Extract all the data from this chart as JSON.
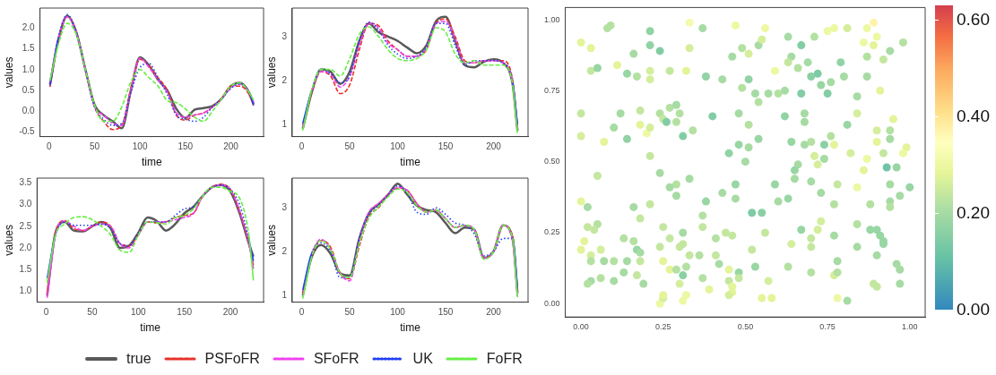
{
  "chart_data": [
    {
      "type": "line",
      "xlabel": "time",
      "ylabel": "values",
      "legend": "bottom",
      "x": [
        1,
        10,
        20,
        30,
        40,
        50,
        60,
        70,
        80,
        90,
        100,
        110,
        120,
        130,
        140,
        150,
        160,
        170,
        180,
        190,
        200,
        210,
        220,
        225
      ],
      "xlim": [
        -10,
        236
      ],
      "ylim": [
        -0.62,
        2.49
      ],
      "xticks": [
        0,
        50,
        100,
        150,
        200
      ],
      "yticks": [
        -0.5,
        {
          "value": 0,
          "label": "0.0"
        },
        0.5,
        {
          "value": 1,
          "label": "1.0"
        },
        1.5,
        {
          "value": 2,
          "label": "2.0"
        }
      ],
      "series": [
        {
          "name": "true",
          "color": "#595959",
          "line_style": "solid",
          "values": [
            0.65,
            1.7,
            2.3,
            1.9,
            1.0,
            0.15,
            -0.1,
            -0.25,
            -0.42,
            0.5,
            1.3,
            1.1,
            0.75,
            0.5,
            0.05,
            -0.17,
            0.03,
            0.07,
            0.12,
            0.3,
            0.6,
            0.68,
            0.45,
            0.17
          ]
        },
        {
          "name": "PSFoFR",
          "color": "#e8312a",
          "line_style": "dashed",
          "values": [
            0.58,
            1.7,
            2.28,
            1.9,
            1.0,
            0.1,
            -0.25,
            -0.45,
            -0.35,
            0.55,
            1.25,
            1.1,
            0.8,
            0.5,
            -0.1,
            -0.22,
            -0.1,
            -0.05,
            0.1,
            0.3,
            0.6,
            0.6,
            0.4,
            0.13
          ]
        },
        {
          "name": "SFoFR",
          "color": "#f040f0",
          "line_style": "dashed",
          "values": [
            0.69,
            1.75,
            2.28,
            1.9,
            1.0,
            0.1,
            -0.1,
            -0.3,
            -0.35,
            0.5,
            1.28,
            1.05,
            0.75,
            0.45,
            -0.05,
            -0.15,
            -0.1,
            -0.05,
            0.1,
            0.3,
            0.55,
            0.65,
            0.45,
            0.21
          ]
        },
        {
          "name": "UK",
          "color": "#1f3ff5",
          "line_style": "dotted",
          "values": [
            0.62,
            1.75,
            2.33,
            1.9,
            1.0,
            0.1,
            -0.2,
            -0.35,
            -0.3,
            0.45,
            1.05,
            1.15,
            0.8,
            0.4,
            -0.1,
            -0.2,
            -0.25,
            -0.15,
            0.1,
            0.3,
            0.55,
            0.65,
            0.45,
            0.14
          ]
        },
        {
          "name": "FoFR",
          "color": "#66ee44",
          "line_style": "dashed",
          "values": [
            0.73,
            1.6,
            2.12,
            1.85,
            1.0,
            0.15,
            -0.25,
            -0.25,
            0.1,
            0.7,
            1.0,
            0.8,
            0.6,
            0.25,
            0.2,
            0.05,
            -0.15,
            -0.25,
            0.0,
            0.3,
            0.6,
            0.68,
            0.45,
            0.26
          ]
        }
      ]
    },
    {
      "type": "line",
      "xlabel": "time",
      "ylabel": "values",
      "legend": "bottom",
      "x": [
        1,
        10,
        20,
        30,
        40,
        50,
        60,
        70,
        80,
        90,
        100,
        110,
        120,
        130,
        140,
        150,
        160,
        170,
        180,
        190,
        200,
        210,
        220,
        225
      ],
      "xlim": [
        -10,
        236
      ],
      "ylim": [
        0.72,
        3.65
      ],
      "xticks": [
        0,
        50,
        100,
        150,
        200
      ],
      "yticks": [
        1,
        2,
        3
      ],
      "series": [
        {
          "name": "true",
          "color": "#595959",
          "line_style": "solid",
          "values": [
            0.9,
            1.7,
            2.25,
            2.2,
            1.92,
            2.2,
            2.9,
            3.3,
            3.1,
            3.0,
            2.9,
            2.75,
            2.62,
            2.8,
            3.35,
            3.45,
            2.9,
            2.35,
            2.3,
            2.43,
            2.48,
            2.4,
            1.9,
            0.85
          ]
        },
        {
          "name": "PSFoFR",
          "color": "#e8312a",
          "line_style": "dashed",
          "values": [
            0.98,
            1.7,
            2.2,
            2.1,
            1.7,
            1.9,
            2.7,
            3.3,
            3.25,
            2.9,
            2.7,
            2.55,
            2.55,
            2.7,
            3.3,
            3.4,
            3.0,
            2.45,
            2.4,
            2.45,
            2.45,
            2.45,
            2.0,
            0.95
          ]
        },
        {
          "name": "SFoFR",
          "color": "#f040f0",
          "line_style": "dashed",
          "values": [
            0.93,
            1.75,
            2.2,
            2.15,
            1.85,
            2.1,
            2.8,
            3.3,
            3.2,
            2.85,
            2.7,
            2.55,
            2.55,
            2.75,
            3.3,
            3.35,
            2.95,
            2.4,
            2.4,
            2.45,
            2.45,
            2.4,
            1.95,
            0.9
          ]
        },
        {
          "name": "UK",
          "color": "#1f3ff5",
          "line_style": "dotted",
          "values": [
            1.02,
            1.75,
            2.25,
            2.15,
            1.95,
            2.1,
            2.9,
            3.33,
            3.15,
            2.8,
            2.6,
            2.5,
            2.55,
            2.75,
            3.3,
            3.3,
            2.8,
            2.35,
            2.45,
            2.45,
            2.45,
            2.4,
            1.95,
            1.0
          ]
        },
        {
          "name": "FoFR",
          "color": "#66ee44",
          "line_style": "dashed",
          "values": [
            0.86,
            1.75,
            2.25,
            2.25,
            2.1,
            2.5,
            3.05,
            3.22,
            3.0,
            2.7,
            2.5,
            2.45,
            2.5,
            2.7,
            3.2,
            3.1,
            2.6,
            2.4,
            2.45,
            2.35,
            2.35,
            2.35,
            1.9,
            0.8
          ]
        }
      ]
    },
    {
      "type": "line",
      "xlabel": "time",
      "ylabel": "values",
      "legend": "bottom",
      "x": [
        1,
        10,
        20,
        30,
        40,
        50,
        60,
        70,
        80,
        90,
        100,
        110,
        120,
        130,
        140,
        150,
        160,
        170,
        180,
        190,
        200,
        210,
        220,
        225
      ],
      "xlim": [
        -10,
        236
      ],
      "ylim": [
        0.75,
        3.61
      ],
      "xticks": [
        0,
        50,
        100,
        150,
        200
      ],
      "yticks": [
        {
          "value": 1,
          "label": "1.0"
        },
        1.5,
        {
          "value": 2,
          "label": "2.0"
        },
        2.5,
        {
          "value": 3,
          "label": "3.0"
        },
        3.5
      ],
      "series": [
        {
          "name": "true",
          "color": "#595959",
          "line_style": "solid",
          "values": [
            0.9,
            2.35,
            2.6,
            2.4,
            2.38,
            2.5,
            2.6,
            2.45,
            2.0,
            2.05,
            2.35,
            2.7,
            2.62,
            2.4,
            2.55,
            2.8,
            2.95,
            3.2,
            3.4,
            3.45,
            3.3,
            2.8,
            2.1,
            1.8
          ]
        },
        {
          "name": "PSFoFR",
          "color": "#e8312a",
          "line_style": "dashed",
          "values": [
            0.95,
            2.35,
            2.63,
            2.45,
            2.4,
            2.5,
            2.6,
            2.5,
            2.1,
            2.05,
            2.3,
            2.6,
            2.58,
            2.6,
            2.7,
            2.75,
            2.8,
            3.2,
            3.4,
            3.47,
            3.35,
            2.85,
            2.1,
            1.6
          ]
        },
        {
          "name": "SFoFR",
          "color": "#f040f0",
          "line_style": "dashed",
          "values": [
            0.85,
            2.3,
            2.62,
            2.5,
            2.4,
            2.5,
            2.55,
            2.5,
            2.1,
            2.0,
            2.3,
            2.6,
            2.6,
            2.6,
            2.65,
            2.7,
            2.8,
            3.2,
            3.4,
            3.45,
            3.35,
            2.85,
            2.1,
            1.52
          ]
        },
        {
          "name": "UK",
          "color": "#1f3ff5",
          "line_style": "dotted",
          "values": [
            1.3,
            2.3,
            2.6,
            2.52,
            2.52,
            2.52,
            2.55,
            2.45,
            2.1,
            2.05,
            2.35,
            2.6,
            2.6,
            2.6,
            2.75,
            2.9,
            2.95,
            3.2,
            3.4,
            3.45,
            3.35,
            3.0,
            2.2,
            1.7
          ]
        },
        {
          "name": "FoFR",
          "color": "#66ee44",
          "line_style": "dashed",
          "values": [
            1.2,
            2.3,
            2.55,
            2.7,
            2.72,
            2.65,
            2.5,
            2.3,
            1.95,
            1.9,
            2.3,
            2.6,
            2.58,
            2.55,
            2.7,
            2.75,
            2.9,
            3.2,
            3.4,
            3.4,
            3.3,
            3.15,
            2.3,
            1.25
          ]
        }
      ]
    },
    {
      "type": "line",
      "xlabel": "time",
      "ylabel": "values",
      "legend": "bottom",
      "x": [
        1,
        10,
        20,
        30,
        40,
        50,
        60,
        70,
        80,
        90,
        100,
        110,
        120,
        130,
        140,
        150,
        160,
        170,
        180,
        190,
        200,
        210,
        220,
        225
      ],
      "xlim": [
        -10,
        236
      ],
      "ylim": [
        0.84,
        3.68
      ],
      "xticks": [
        0,
        50,
        100,
        150,
        200
      ],
      "yticks": [
        1,
        2,
        3
      ],
      "series": [
        {
          "name": "true",
          "color": "#595959",
          "line_style": "solid",
          "values": [
            1.0,
            1.85,
            2.15,
            1.95,
            1.5,
            1.45,
            2.3,
            2.88,
            3.08,
            3.3,
            3.55,
            3.3,
            3.05,
            2.95,
            2.9,
            2.65,
            2.42,
            2.55,
            2.5,
            1.85,
            2.0,
            2.6,
            2.3,
            1.05
          ]
        },
        {
          "name": "PSFoFR",
          "color": "#e8312a",
          "line_style": "dashed",
          "values": [
            1.05,
            1.9,
            2.25,
            2.1,
            1.5,
            1.38,
            2.12,
            2.8,
            3.0,
            3.3,
            3.45,
            3.4,
            3.1,
            2.9,
            2.95,
            2.75,
            2.55,
            2.6,
            2.5,
            1.85,
            2.0,
            2.6,
            2.34,
            1.1
          ]
        },
        {
          "name": "SFoFR",
          "color": "#f040f0",
          "line_style": "dashed",
          "values": [
            0.97,
            1.9,
            2.28,
            2.05,
            1.5,
            1.33,
            2.24,
            2.9,
            3.1,
            3.3,
            3.47,
            3.4,
            3.1,
            2.9,
            2.95,
            2.75,
            2.55,
            2.6,
            2.5,
            1.85,
            2.0,
            2.6,
            2.21,
            0.97
          ]
        },
        {
          "name": "UK",
          "color": "#1f3ff5",
          "line_style": "dotted",
          "values": [
            1.12,
            1.95,
            2.2,
            2.0,
            1.4,
            1.4,
            2.3,
            2.85,
            3.05,
            3.3,
            3.5,
            3.35,
            2.9,
            2.85,
            3.0,
            2.85,
            2.65,
            2.6,
            2.4,
            1.9,
            2.0,
            2.3,
            2.3,
            1.15
          ]
        },
        {
          "name": "FoFR",
          "color": "#66ee44",
          "line_style": "dashed",
          "values": [
            0.92,
            1.85,
            2.25,
            2.05,
            1.5,
            1.4,
            2.18,
            2.76,
            3.02,
            3.25,
            3.43,
            3.35,
            3.05,
            2.9,
            2.95,
            2.75,
            2.55,
            2.6,
            2.5,
            1.82,
            2.0,
            2.6,
            2.3,
            0.95
          ]
        }
      ]
    },
    {
      "type": "scatter",
      "marker": "circle",
      "xlim": [
        -0.048,
        1.047
      ],
      "ylim": [
        -0.047,
        1.043
      ],
      "xticks": [
        {
          "value": 0,
          "label": "0.00"
        },
        {
          "value": 0.25,
          "label": "0.25"
        },
        {
          "value": 0.5,
          "label": "0.50"
        },
        {
          "value": 0.75,
          "label": "0.75"
        },
        {
          "value": 1,
          "label": "1.00"
        }
      ],
      "yticks": [
        {
          "value": 0,
          "label": "0.00"
        },
        {
          "value": 0.25,
          "label": "0.25"
        },
        {
          "value": 0.5,
          "label": "0.50"
        },
        {
          "value": 0.75,
          "label": "0.75"
        },
        {
          "value": 1,
          "label": "1.00"
        }
      ],
      "clim": [
        0,
        0.63
      ],
      "cticks": [
        {
          "value": 0,
          "label": "0.00"
        },
        {
          "value": 0.2,
          "label": "0.20"
        },
        {
          "value": 0.4,
          "label": "0.40"
        },
        {
          "value": 0.6,
          "label": "0.60"
        }
      ],
      "x": [
        0.0,
        0.03,
        0.08,
        0.09,
        0.21,
        0.03,
        0.05,
        0.11,
        0.14,
        0.16,
        0.17,
        0.21,
        0.24,
        0.21,
        0.21,
        0.27,
        0.32,
        0.33,
        0.33,
        0.37,
        0.38,
        0.43,
        0.47,
        0.56,
        0.46,
        0.49,
        0.51,
        0.54,
        0.55,
        0.51,
        0.53,
        0.57,
        0.59,
        0.49,
        0.63,
        0.64,
        0.63,
        0.67,
        0.66,
        0.69,
        0.72,
        0.7,
        0.71,
        0.75,
        0.77,
        0.81,
        0.89,
        0.87,
        0.9,
        0.89,
        0.94,
        0.98,
        0.92,
        0.86,
        0.87,
        0.87,
        0.79,
        0.76,
        0.73,
        0.75,
        0.8,
        0.91,
        0.84,
        0.84,
        0.67,
        0.62,
        0.6,
        0.54,
        0.0,
        0.0,
        0.07,
        0.1,
        0.12,
        0.14,
        0.18,
        0.18,
        0.2,
        0.21,
        0.24,
        0.25,
        0.26,
        0.27,
        0.29,
        0.3,
        0.29,
        0.31,
        0.34,
        0.4,
        0.48,
        0.51,
        0.48,
        0.45,
        0.51,
        0.54,
        0.5,
        0.62,
        0.68,
        0.68,
        0.64,
        0.68,
        0.7,
        0.74,
        0.76,
        0.77,
        0.71,
        0.74,
        0.72,
        0.66,
        0.65,
        0.81,
        0.82,
        0.87,
        0.86,
        0.9,
        0.9,
        0.94,
        0.94,
        0.95,
        0.99,
        0.98,
        0.92,
        0.93,
        0.96,
        1.0,
        0.94,
        0.97,
        0.94,
        0.94,
        0.88,
        0.84,
        0.78,
        0.77,
        0.7,
        0.73,
        0.65,
        0.6,
        0.63,
        0.59,
        0.52,
        0.55,
        0.47,
        0.47,
        0.43,
        0.38,
        0.37,
        0.33,
        0.29,
        0.27,
        0.29,
        0.24,
        0.21,
        0.05,
        0.0,
        0.02,
        0.16,
        0.21,
        0.18,
        0.02,
        0.05,
        0.04,
        0.01,
        0.0,
        0.06,
        0.03,
        0.03,
        0.07,
        0.1,
        0.14,
        0.13,
        0.16,
        0.17,
        0.18,
        0.18,
        0.13,
        0.1,
        0.17,
        0.19,
        0.03,
        0.06,
        0.02,
        0.25,
        0.24,
        0.27,
        0.25,
        0.27,
        0.29,
        0.3,
        0.31,
        0.31,
        0.31,
        0.3,
        0.32,
        0.33,
        0.36,
        0.37,
        0.41,
        0.41,
        0.42,
        0.44,
        0.46,
        0.45,
        0.48,
        0.48,
        0.45,
        0.46,
        0.46,
        0.45,
        0.37,
        0.39,
        0.31,
        0.32,
        0.24,
        0.25,
        0.25,
        0.52,
        0.53,
        0.56,
        0.57,
        0.55,
        0.58,
        0.63,
        0.64,
        0.67,
        0.7,
        0.7,
        0.72,
        0.73,
        0.7,
        0.77,
        0.78,
        0.77,
        0.78,
        0.78,
        0.81,
        0.84,
        0.84,
        0.88,
        0.9,
        0.91,
        0.92,
        0.92,
        0.9,
        0.96,
        0.97,
        0.97,
        0.89,
        0.9
      ],
      "values": [
        0.92,
        0.9,
        0.97,
        0.98,
        0.96,
        0.82,
        0.83,
        0.84,
        0.81,
        0.88,
        0.8,
        0.91,
        0.89,
        0.82,
        0.79,
        0.82,
        0.82,
        0.99,
        0.9,
        0.97,
        0.8,
        0.79,
        0.98,
        0.97,
        0.87,
        0.9,
        0.88,
        0.91,
        0.93,
        0.79,
        0.74,
        0.74,
        0.82,
        0.76,
        0.94,
        0.87,
        0.85,
        0.91,
        0.83,
        0.85,
        0.81,
        0.8,
        0.94,
        0.96,
        0.97,
        0.97,
        0.99,
        0.97,
        0.94,
        0.91,
        0.89,
        0.92,
        0.86,
        0.92,
        0.87,
        0.8,
        0.85,
        0.78,
        0.77,
        0.74,
        0.8,
        0.75,
        0.73,
        0.67,
        0.74,
        0.75,
        0.74,
        0.71,
        0.67,
        0.59,
        0.57,
        0.62,
        0.67,
        0.58,
        0.68,
        0.63,
        0.6,
        0.62,
        0.67,
        0.65,
        0.64,
        0.69,
        0.7,
        0.67,
        0.64,
        0.59,
        0.61,
        0.66,
        0.67,
        0.63,
        0.56,
        0.53,
        0.55,
        0.58,
        0.5,
        0.66,
        0.67,
        0.64,
        0.57,
        0.56,
        0.57,
        0.56,
        0.59,
        0.56,
        0.52,
        0.51,
        0.49,
        0.49,
        0.47,
        0.63,
        0.53,
        0.51,
        0.47,
        0.61,
        0.57,
        0.61,
        0.58,
        0.65,
        0.55,
        0.53,
        0.53,
        0.48,
        0.48,
        0.41,
        0.42,
        0.38,
        0.36,
        0.34,
        0.35,
        0.41,
        0.42,
        0.35,
        0.43,
        0.39,
        0.44,
        0.36,
        0.37,
        0.42,
        0.32,
        0.32,
        0.42,
        0.37,
        0.39,
        0.36,
        0.31,
        0.44,
        0.42,
        0.41,
        0.38,
        0.46,
        0.52,
        0.45,
        0.36,
        0.34,
        0.34,
        0.35,
        0.3,
        0.27,
        0.28,
        0.26,
        0.22,
        0.19,
        0.19,
        0.17,
        0.15,
        0.15,
        0.15,
        0.15,
        0.23,
        0.22,
        0.19,
        0.18,
        0.15,
        0.11,
        0.08,
        0.1,
        0.07,
        0.08,
        0.09,
        0.07,
        0.27,
        0.2,
        0.23,
        0.15,
        0.12,
        0.12,
        0.2,
        0.21,
        0.25,
        0.1,
        0.07,
        0.13,
        0.17,
        0.17,
        0.27,
        0.23,
        0.17,
        0.14,
        0.25,
        0.24,
        0.12,
        0.11,
        0.09,
        0.08,
        0.06,
        0.04,
        0.03,
        0.09,
        0.05,
        0.01,
        0.03,
        0.0,
        0.02,
        0.03,
        0.19,
        0.13,
        0.25,
        0.08,
        0.02,
        0.02,
        0.13,
        0.21,
        0.26,
        0.23,
        0.2,
        0.26,
        0.29,
        0.11,
        0.24,
        0.15,
        0.1,
        0.11,
        0.02,
        0.01,
        0.28,
        0.2,
        0.26,
        0.26,
        0.24,
        0.22,
        0.21,
        0.17,
        0.14,
        0.12,
        0.07,
        0.07,
        0.06
      ],
      "cvalues": [
        0.28,
        0.28,
        0.22,
        0.22,
        0.17,
        0.24,
        0.18,
        0.28,
        0.18,
        0.2,
        0.22,
        0.17,
        0.15,
        0.26,
        0.26,
        0.24,
        0.28,
        0.32,
        0.26,
        0.2,
        0.17,
        0.2,
        0.3,
        0.3,
        0.2,
        0.22,
        0.26,
        0.2,
        0.26,
        0.17,
        0.2,
        0.2,
        0.3,
        0.22,
        0.2,
        0.2,
        0.24,
        0.15,
        0.22,
        0.2,
        0.14,
        0.16,
        0.22,
        0.3,
        0.3,
        0.26,
        0.37,
        0.3,
        0.3,
        0.28,
        0.2,
        0.22,
        0.24,
        0.3,
        0.22,
        0.2,
        0.17,
        0.2,
        0.18,
        0.15,
        0.2,
        0.28,
        0.2,
        0.26,
        0.15,
        0.2,
        0.22,
        0.22,
        0.24,
        0.26,
        0.28,
        0.2,
        0.2,
        0.17,
        0.24,
        0.28,
        0.3,
        0.26,
        0.22,
        0.24,
        0.15,
        0.22,
        0.2,
        0.22,
        0.22,
        0.15,
        0.22,
        0.15,
        0.2,
        0.22,
        0.18,
        0.17,
        0.2,
        0.18,
        0.2,
        0.17,
        0.2,
        0.2,
        0.18,
        0.2,
        0.22,
        0.16,
        0.22,
        0.28,
        0.26,
        0.2,
        0.26,
        0.2,
        0.18,
        0.18,
        0.26,
        0.3,
        0.28,
        0.26,
        0.28,
        0.22,
        0.2,
        0.28,
        0.28,
        0.3,
        0.24,
        0.12,
        0.18,
        0.18,
        0.2,
        0.2,
        0.2,
        0.22,
        0.22,
        0.3,
        0.24,
        0.22,
        0.2,
        0.2,
        0.2,
        0.2,
        0.18,
        0.18,
        0.14,
        0.16,
        0.18,
        0.2,
        0.2,
        0.18,
        0.22,
        0.2,
        0.22,
        0.2,
        0.2,
        0.2,
        0.24,
        0.24,
        0.28,
        0.2,
        0.2,
        0.24,
        0.24,
        0.24,
        0.22,
        0.24,
        0.28,
        0.28,
        0.26,
        0.26,
        0.22,
        0.2,
        0.22,
        0.2,
        0.22,
        0.22,
        0.18,
        0.2,
        0.24,
        0.2,
        0.2,
        0.24,
        0.2,
        0.2,
        0.22,
        0.22,
        0.24,
        0.24,
        0.24,
        0.28,
        0.28,
        0.22,
        0.24,
        0.24,
        0.2,
        0.16,
        0.26,
        0.22,
        0.24,
        0.22,
        0.24,
        0.22,
        0.24,
        0.2,
        0.24,
        0.24,
        0.28,
        0.18,
        0.24,
        0.24,
        0.28,
        0.28,
        0.26,
        0.22,
        0.28,
        0.3,
        0.3,
        0.3,
        0.26,
        0.28,
        0.24,
        0.18,
        0.24,
        0.26,
        0.28,
        0.28,
        0.22,
        0.26,
        0.18,
        0.24,
        0.24,
        0.26,
        0.26,
        0.22,
        0.2,
        0.2,
        0.26,
        0.22,
        0.3,
        0.2,
        0.22,
        0.2,
        0.18,
        0.18,
        0.18,
        0.18,
        0.18,
        0.2,
        0.2,
        0.2,
        0.2,
        0.24,
        0.24
      ]
    }
  ]
}
